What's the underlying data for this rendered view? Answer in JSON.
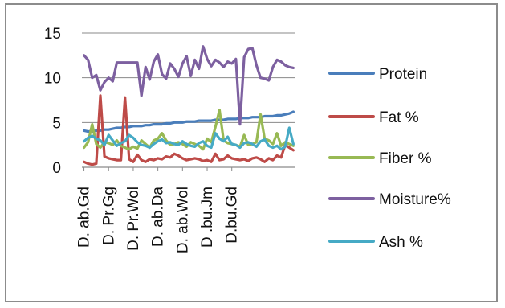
{
  "chart_data": {
    "type": "line",
    "y_ticks": [
      "0",
      "5",
      "10",
      "15"
    ],
    "ylim": [
      0,
      15
    ],
    "grid": "horizontal",
    "legend_position": "right",
    "category_labels": [
      "D. ab.Gd",
      "D. Pr.Gg",
      "D. Pr.Wol",
      "D. ab.Da",
      "D. ab.Wol",
      "D .bu.Jm",
      "D.bu.Gd"
    ],
    "n_points": 52,
    "label_every": 6,
    "series": [
      {
        "name": "Protein",
        "color": "#4a7ebb",
        "values": [
          4.1,
          4.0,
          4.0,
          4.1,
          4.1,
          4.2,
          4.2,
          4.3,
          4.4,
          4.4,
          4.5,
          4.5,
          4.6,
          4.6,
          4.6,
          4.7,
          4.7,
          4.8,
          4.8,
          4.8,
          4.9,
          4.9,
          5.0,
          5.0,
          5.0,
          5.1,
          5.1,
          5.1,
          5.2,
          5.2,
          5.2,
          5.2,
          5.3,
          5.3,
          5.3,
          5.4,
          5.4,
          5.4,
          5.5,
          5.5,
          5.5,
          5.6,
          5.6,
          5.6,
          5.7,
          5.7,
          5.7,
          5.8,
          5.8,
          5.9,
          6.0,
          6.2
        ]
      },
      {
        "name": "Fat %",
        "color": "#be4b48",
        "values": [
          0.6,
          0.4,
          0.3,
          0.4,
          8.0,
          1.2,
          1.0,
          0.9,
          0.8,
          0.8,
          7.8,
          0.9,
          0.6,
          1.4,
          0.8,
          0.6,
          0.9,
          0.8,
          1.0,
          0.9,
          1.2,
          1.1,
          1.5,
          1.3,
          1.0,
          0.8,
          0.9,
          1.0,
          0.9,
          0.7,
          0.8,
          0.6,
          1.5,
          0.8,
          0.9,
          1.3,
          1.0,
          0.9,
          0.8,
          0.9,
          0.7,
          1.0,
          1.1,
          0.9,
          0.6,
          1.0,
          0.8,
          1.3,
          1.1,
          2.5,
          2.2,
          1.9
        ]
      },
      {
        "name": "Fiber %",
        "color": "#98b954",
        "values": [
          2.2,
          2.8,
          4.8,
          2.6,
          2.2,
          2.8,
          2.7,
          2.5,
          3.0,
          2.4,
          2.2,
          2.0,
          2.3,
          2.1,
          3.0,
          2.6,
          2.2,
          3.0,
          3.2,
          3.8,
          3.0,
          2.5,
          2.6,
          2.8,
          2.6,
          2.3,
          2.8,
          2.6,
          2.4,
          2.0,
          3.2,
          2.8,
          4.5,
          6.4,
          3.0,
          2.7,
          2.6,
          2.5,
          2.3,
          3.6,
          2.5,
          2.6,
          2.8,
          5.9,
          3.2,
          3.0,
          2.6,
          3.8,
          2.4,
          2.8,
          2.6,
          2.4
        ]
      },
      {
        "name": "Moisture%",
        "color": "#7d60a0",
        "values": [
          12.5,
          12.0,
          10.0,
          10.3,
          8.6,
          9.5,
          10.0,
          9.6,
          11.7,
          11.7,
          11.7,
          11.7,
          11.7,
          11.7,
          8.0,
          11.2,
          9.8,
          11.8,
          12.6,
          10.4,
          9.9,
          11.6,
          11.0,
          10.1,
          11.6,
          12.4,
          10.2,
          12.0,
          11.0,
          13.5,
          12.1,
          11.3,
          12.0,
          11.7,
          11.2,
          11.8,
          11.6,
          12.1,
          4.8,
          12.3,
          13.2,
          13.3,
          11.4,
          10.0,
          9.9,
          9.7,
          11.2,
          12.0,
          11.8,
          11.4,
          11.2,
          11.1
        ]
      },
      {
        "name": "Ash %",
        "color": "#46aac5",
        "values": [
          2.9,
          3.3,
          3.5,
          3.2,
          3.0,
          2.5,
          3.6,
          3.0,
          2.4,
          2.7,
          2.9,
          3.6,
          3.3,
          2.8,
          2.5,
          2.4,
          2.2,
          2.6,
          2.9,
          3.1,
          2.7,
          2.8,
          2.6,
          2.5,
          2.9,
          2.6,
          2.4,
          2.3,
          2.7,
          2.9,
          2.4,
          2.2,
          3.8,
          3.2,
          2.9,
          3.4,
          2.6,
          2.5,
          2.2,
          2.7,
          2.8,
          2.6,
          2.3,
          2.9,
          3.1,
          2.4,
          2.2,
          2.4,
          2.0,
          2.3,
          4.4,
          2.6
        ]
      }
    ]
  }
}
